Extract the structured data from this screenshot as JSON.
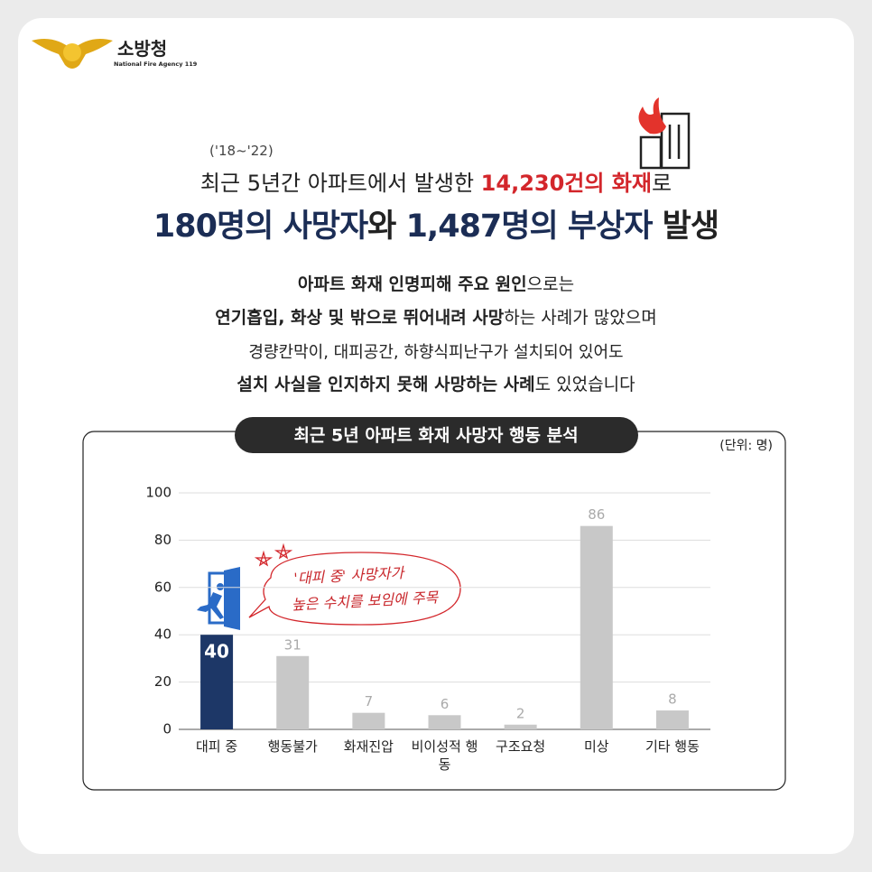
{
  "header": {
    "agency": "소방청",
    "agency_en": "National Fire Agency 119"
  },
  "headline": {
    "period": "('18~'22)",
    "line1": [
      "최근 5년간 아파트에서 발생한 ",
      "14,230건의 화재",
      "로"
    ],
    "line2": [
      "180명의 사망자",
      "와 ",
      "1,487명의 부상자",
      " 발생"
    ]
  },
  "body": {
    "p1": [
      "아파트 화재 인명피해 주요 원인",
      "으로는"
    ],
    "p2": [
      "연기흡입, 화상 및 밖으로 뛰어내려 사망",
      "하는 사례가 많았으며"
    ],
    "p3": "경량칸막이, 대피공간, 하향식피난구가 설치되어 있어도",
    "p4": [
      "설치 사실을 인지하지 못해 사망하는 사례",
      "도 있었습니다"
    ]
  },
  "chart_data": {
    "type": "bar",
    "title": "최근 5년 아파트 화재 사망자 행동 분석",
    "unit": "(단위: 명)",
    "categories": [
      "대피 중",
      "행동불가",
      "화재진압",
      "비이성적 행동",
      "구조요청",
      "미상",
      "기타 행동"
    ],
    "values": [
      40,
      31,
      7,
      6,
      2,
      86,
      8
    ],
    "colors": [
      "#1d3767",
      "#c8c8c8",
      "#c8c8c8",
      "#c8c8c8",
      "#c8c8c8",
      "#c8c8c8",
      "#c8c8c8"
    ],
    "ylim": [
      0,
      100
    ],
    "yticks": [
      0,
      20,
      40,
      60,
      80,
      100
    ],
    "grid": true,
    "annotation": [
      "'대피 중' 사망자가",
      "높은 수치를 보임에 주목"
    ]
  }
}
